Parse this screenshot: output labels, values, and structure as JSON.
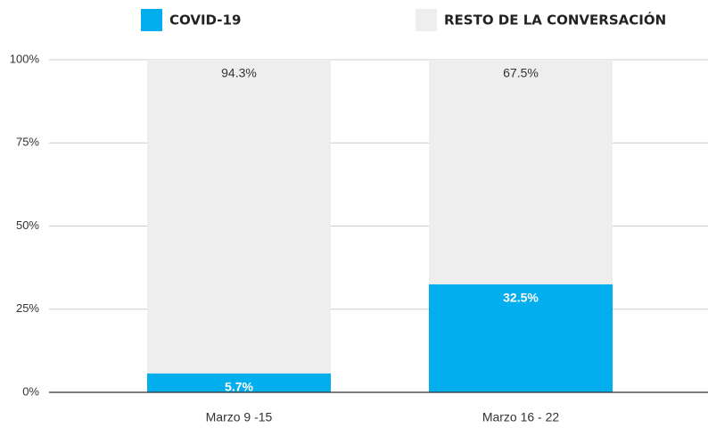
{
  "chart_data": {
    "type": "stacked_bar",
    "categories": [
      "Marzo 9 -15",
      "Marzo 16 - 22"
    ],
    "series": [
      {
        "name": "COVID-19",
        "color": "#03aeef",
        "values": [
          5.7,
          32.5
        ],
        "value_labels": [
          "5.7%",
          "32.5%"
        ]
      },
      {
        "name": "RESTO DE LA CONVERSACIÓN",
        "color": "#eeeeee",
        "values": [
          94.3,
          67.5
        ],
        "value_labels": [
          "94.3%",
          "67.5%"
        ]
      }
    ],
    "ylim": [
      0,
      100
    ],
    "yticks": [
      {
        "value": 0,
        "label": "0%"
      },
      {
        "value": 25,
        "label": "25%"
      },
      {
        "value": 50,
        "label": "50%"
      },
      {
        "value": 75,
        "label": "75%"
      },
      {
        "value": 100,
        "label": "100%"
      }
    ],
    "grid": true
  }
}
